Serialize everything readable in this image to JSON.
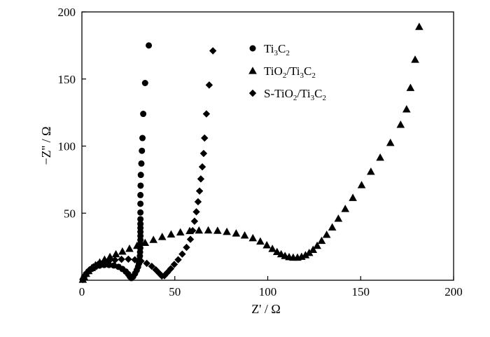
{
  "chart_data": {
    "type": "scatter",
    "xlabel": "Z' / Ω",
    "ylabel": "−Z'' / Ω",
    "xlim": [
      0,
      200
    ],
    "ylim": [
      0,
      200
    ],
    "x_ticks": [
      0,
      50,
      100,
      150,
      200
    ],
    "y_ticks": [
      50,
      100,
      150,
      200
    ],
    "x_tick_labels": [
      "0",
      "50",
      "100",
      "150",
      "200"
    ],
    "y_tick_labels": [
      "50",
      "100",
      "150",
      "200"
    ],
    "grid": false,
    "legend_position": "top-center",
    "series": [
      {
        "name_parts": [
          [
            "Ti",
            ""
          ],
          [
            "3",
            "sub"
          ],
          [
            "C",
            ""
          ],
          [
            "2",
            "sub"
          ]
        ],
        "marker": "circle",
        "color": "#000000",
        "points": [
          [
            0.5,
            0.5
          ],
          [
            1.2,
            2.5
          ],
          [
            2.2,
            4.6
          ],
          [
            3.5,
            6.6
          ],
          [
            5.2,
            8.4
          ],
          [
            7.2,
            9.9
          ],
          [
            9.5,
            10.9
          ],
          [
            12.0,
            11.4
          ],
          [
            14.6,
            11.4
          ],
          [
            17.2,
            11.0
          ],
          [
            19.7,
            10.0
          ],
          [
            21.8,
            8.4
          ],
          [
            23.6,
            6.5
          ],
          [
            24.9,
            4.6
          ],
          [
            25.8,
            2.8
          ],
          [
            26.6,
            1.6
          ],
          [
            27.6,
            2.8
          ],
          [
            28.6,
            5.0
          ],
          [
            29.5,
            7.5
          ],
          [
            30.2,
            10.0
          ],
          [
            30.7,
            12.5
          ],
          [
            31.0,
            15.0
          ],
          [
            31.2,
            18.0
          ],
          [
            31.3,
            21.0
          ],
          [
            31.4,
            24.0
          ],
          [
            31.5,
            27.0
          ],
          [
            31.5,
            30.0
          ],
          [
            31.5,
            33.0
          ],
          [
            31.5,
            36.0
          ],
          [
            31.5,
            39.0
          ],
          [
            31.5,
            42.0
          ],
          [
            31.5,
            45.5
          ],
          [
            31.5,
            50.5
          ],
          [
            31.5,
            57.0
          ],
          [
            31.5,
            63.5
          ],
          [
            31.6,
            70.5
          ],
          [
            31.7,
            78.5
          ],
          [
            32.0,
            87.0
          ],
          [
            32.3,
            96.5
          ],
          [
            32.6,
            106.0
          ],
          [
            33.0,
            124.0
          ],
          [
            34.0,
            147.0
          ],
          [
            36.0,
            175.0
          ]
        ]
      },
      {
        "name_parts": [
          [
            "TiO",
            ""
          ],
          [
            "2",
            "sub"
          ],
          [
            "/Ti",
            ""
          ],
          [
            "3",
            "sub"
          ],
          [
            "C",
            ""
          ],
          [
            "2",
            "sub"
          ]
        ],
        "marker": "triangle",
        "color": "#000000",
        "points": [
          [
            0.5,
            0.5
          ],
          [
            1.2,
            2.6
          ],
          [
            2.3,
            4.9
          ],
          [
            3.6,
            7.0
          ],
          [
            5.3,
            9.2
          ],
          [
            7.3,
            11.3
          ],
          [
            9.6,
            13.4
          ],
          [
            12.2,
            15.5
          ],
          [
            15.1,
            17.5
          ],
          [
            18.3,
            19.5
          ],
          [
            21.8,
            21.5
          ],
          [
            25.6,
            23.6
          ],
          [
            29.7,
            25.8
          ],
          [
            34.0,
            28.0
          ],
          [
            38.5,
            30.2
          ],
          [
            43.2,
            32.4
          ],
          [
            48.0,
            34.3
          ],
          [
            53.0,
            35.8
          ],
          [
            58.0,
            36.8
          ],
          [
            63.0,
            37.2
          ],
          [
            68.0,
            37.3
          ],
          [
            73.0,
            37.0
          ],
          [
            78.0,
            36.2
          ],
          [
            83.0,
            35.0
          ],
          [
            87.6,
            33.5
          ],
          [
            92.0,
            31.5
          ],
          [
            96.0,
            29.0
          ],
          [
            99.5,
            26.2
          ],
          [
            102.5,
            23.5
          ],
          [
            105.0,
            21.2
          ],
          [
            107.2,
            19.5
          ],
          [
            109.3,
            18.2
          ],
          [
            111.5,
            17.4
          ],
          [
            113.7,
            17.0
          ],
          [
            116.0,
            17.0
          ],
          [
            118.2,
            17.6
          ],
          [
            120.3,
            18.8
          ],
          [
            122.3,
            20.5
          ],
          [
            124.4,
            22.8
          ],
          [
            126.6,
            25.8
          ],
          [
            129.0,
            29.5
          ],
          [
            131.7,
            34.0
          ],
          [
            134.7,
            39.5
          ],
          [
            138.0,
            46.0
          ],
          [
            141.7,
            53.3
          ],
          [
            145.8,
            61.5
          ],
          [
            150.5,
            71.0
          ],
          [
            155.5,
            81.0
          ],
          [
            160.5,
            91.5
          ],
          [
            166.0,
            102.5
          ],
          [
            171.5,
            116.0
          ],
          [
            174.7,
            127.5
          ],
          [
            176.8,
            143.5
          ],
          [
            179.3,
            164.5
          ],
          [
            181.5,
            189.0
          ]
        ]
      },
      {
        "name_parts": [
          [
            "S-TiO",
            ""
          ],
          [
            "2",
            "sub"
          ],
          [
            "/Ti",
            ""
          ],
          [
            "3",
            "sub"
          ],
          [
            "C",
            ""
          ],
          [
            "2",
            "sub"
          ]
        ],
        "marker": "diamond",
        "color": "#000000",
        "points": [
          [
            0.5,
            0.5
          ],
          [
            1.4,
            3.0
          ],
          [
            2.6,
            5.5
          ],
          [
            4.2,
            7.9
          ],
          [
            6.2,
            10.0
          ],
          [
            8.6,
            11.8
          ],
          [
            11.4,
            13.2
          ],
          [
            14.5,
            14.3
          ],
          [
            17.8,
            15.1
          ],
          [
            21.3,
            15.6
          ],
          [
            25.0,
            15.7
          ],
          [
            28.5,
            15.3
          ],
          [
            31.8,
            14.3
          ],
          [
            34.9,
            12.6
          ],
          [
            37.6,
            10.4
          ],
          [
            39.8,
            7.8
          ],
          [
            41.6,
            5.2
          ],
          [
            43.0,
            3.2
          ],
          [
            44.4,
            3.4
          ],
          [
            46.0,
            5.8
          ],
          [
            47.8,
            8.6
          ],
          [
            49.7,
            11.8
          ],
          [
            51.8,
            15.3
          ],
          [
            54.0,
            19.5
          ],
          [
            56.3,
            24.5
          ],
          [
            58.4,
            30.5
          ],
          [
            59.6,
            37.0
          ],
          [
            60.6,
            44.0
          ],
          [
            61.6,
            51.0
          ],
          [
            62.5,
            58.5
          ],
          [
            63.3,
            66.5
          ],
          [
            64.0,
            75.5
          ],
          [
            64.8,
            84.5
          ],
          [
            65.5,
            94.5
          ],
          [
            66.0,
            106.0
          ],
          [
            67.0,
            124.0
          ],
          [
            68.5,
            145.5
          ],
          [
            70.5,
            171.0
          ]
        ]
      }
    ]
  }
}
